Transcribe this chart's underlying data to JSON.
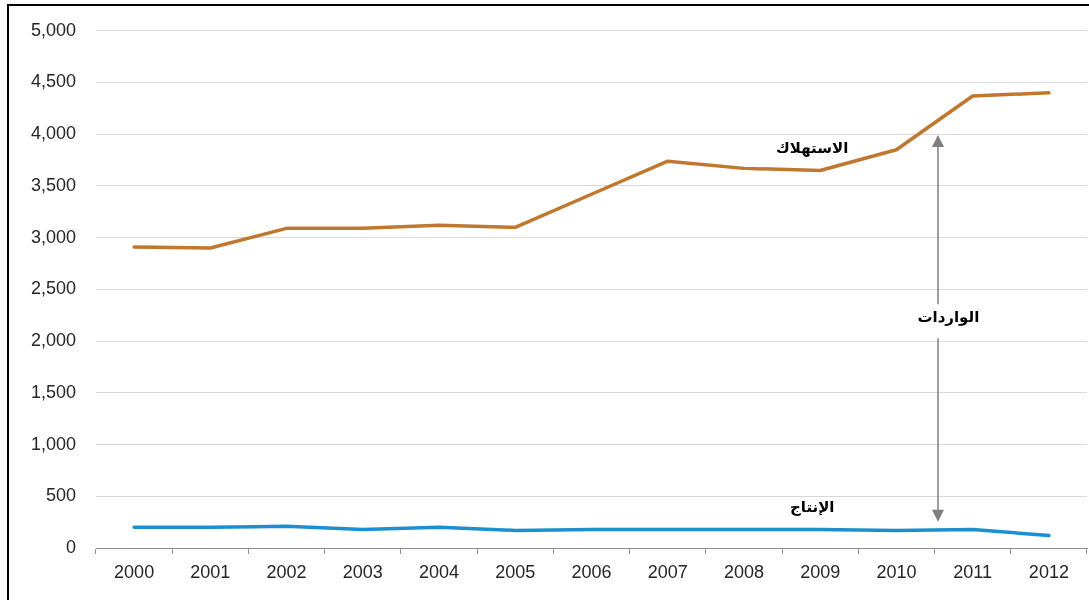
{
  "chart_data": {
    "type": "line",
    "categories": [
      "2000",
      "2001",
      "2002",
      "2003",
      "2004",
      "2005",
      "2006",
      "2007",
      "2008",
      "2009",
      "2010",
      "2011",
      "2012"
    ],
    "series": [
      {
        "name": "الاستهلاك",
        "color": "#c0782f",
        "values": [
          2910,
          2900,
          3090,
          3090,
          3120,
          3100,
          3420,
          3740,
          3670,
          3650,
          3850,
          4370,
          4400
        ]
      },
      {
        "name": "الإنتاج",
        "color": "#1b8fd0",
        "values": [
          200,
          200,
          210,
          180,
          200,
          170,
          180,
          180,
          180,
          180,
          170,
          180,
          120
        ]
      }
    ],
    "ylim": [
      0,
      5000
    ],
    "yticks": [
      0,
      500,
      {
        "value": 1000,
        "label": "1,000"
      },
      {
        "value": 1500,
        "label": "1,500"
      },
      {
        "value": 2000,
        "label": "2,000"
      },
      {
        "value": 2500,
        "label": "2,500"
      },
      {
        "value": 3000,
        "label": "3,000"
      },
      {
        "value": 3500,
        "label": "3,500"
      },
      {
        "value": 4000,
        "label": "4,000"
      },
      {
        "value": 4500,
        "label": "4,500"
      },
      {
        "value": 5000,
        "label": "5,000"
      }
    ],
    "grid": "y",
    "legend": false,
    "marker": "none",
    "line_style": "solid",
    "annotations": [
      "الواردات"
    ]
  }
}
